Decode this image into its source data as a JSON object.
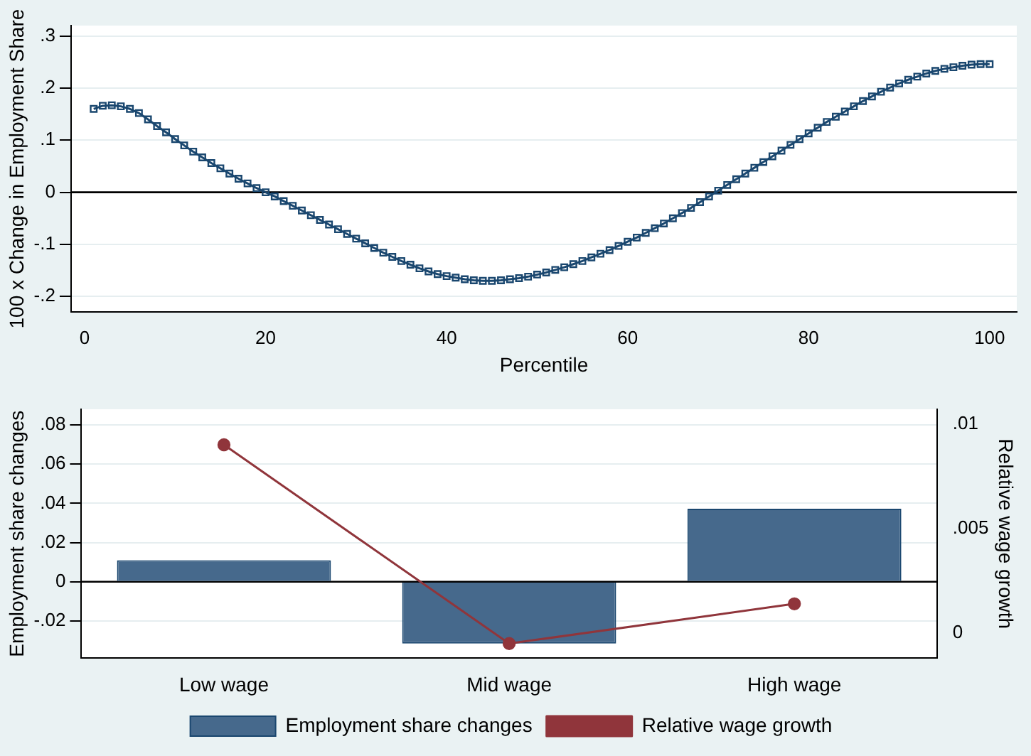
{
  "chart_data": [
    {
      "type": "line",
      "xlabel": "Percentile",
      "ylabel": "100 x Change in Employment Share",
      "x": [
        1,
        2,
        3,
        4,
        5,
        6,
        7,
        8,
        9,
        10,
        11,
        12,
        13,
        14,
        15,
        16,
        17,
        18,
        19,
        20,
        21,
        22,
        23,
        24,
        25,
        26,
        27,
        28,
        29,
        30,
        31,
        32,
        33,
        34,
        35,
        36,
        37,
        38,
        39,
        40,
        41,
        42,
        43,
        44,
        45,
        46,
        47,
        48,
        49,
        50,
        51,
        52,
        53,
        54,
        55,
        56,
        57,
        58,
        59,
        60,
        61,
        62,
        63,
        64,
        65,
        66,
        67,
        68,
        69,
        70,
        71,
        72,
        73,
        74,
        75,
        76,
        77,
        78,
        79,
        80,
        81,
        82,
        83,
        84,
        85,
        86,
        87,
        88,
        89,
        90,
        91,
        92,
        93,
        94,
        95,
        96,
        97,
        98,
        99,
        100
      ],
      "series": [
        {
          "color": "#1a476f",
          "values": [
            0.16,
            0.166,
            0.167,
            0.165,
            0.16,
            0.152,
            0.14,
            0.127,
            0.115,
            0.102,
            0.09,
            0.078,
            0.067,
            0.056,
            0.046,
            0.036,
            0.026,
            0.017,
            0.008,
            0.0,
            -0.008,
            -0.017,
            -0.026,
            -0.035,
            -0.044,
            -0.053,
            -0.062,
            -0.071,
            -0.08,
            -0.089,
            -0.098,
            -0.107,
            -0.116,
            -0.124,
            -0.132,
            -0.139,
            -0.146,
            -0.152,
            -0.157,
            -0.161,
            -0.164,
            -0.167,
            -0.169,
            -0.17,
            -0.17,
            -0.169,
            -0.167,
            -0.165,
            -0.162,
            -0.158,
            -0.154,
            -0.149,
            -0.144,
            -0.138,
            -0.132,
            -0.125,
            -0.118,
            -0.111,
            -0.103,
            -0.095,
            -0.087,
            -0.078,
            -0.069,
            -0.06,
            -0.05,
            -0.04,
            -0.03,
            -0.019,
            -0.008,
            0.003,
            0.014,
            0.025,
            0.036,
            0.047,
            0.058,
            0.069,
            0.08,
            0.091,
            0.102,
            0.113,
            0.124,
            0.135,
            0.145,
            0.155,
            0.165,
            0.175,
            0.184,
            0.193,
            0.201,
            0.209,
            0.216,
            0.222,
            0.228,
            0.233,
            0.237,
            0.24,
            0.243,
            0.245,
            0.246,
            0.246
          ]
        }
      ],
      "marker": "square",
      "xlim": [
        -1.5,
        103
      ],
      "xticks": [
        0,
        20,
        40,
        60,
        80,
        100
      ],
      "ylim": [
        -0.23,
        0.32
      ],
      "yticks": [
        {
          "value": -0.2,
          "label": "-.2"
        },
        {
          "value": -0.1,
          "label": "-.1"
        },
        0,
        {
          "value": 0.1,
          "label": ".1"
        },
        {
          "value": 0.2,
          "label": ".2"
        },
        {
          "value": 0.3,
          "label": ".3"
        }
      ],
      "grid": "y",
      "ref_lines": [
        {
          "axis": "y",
          "value": 0,
          "color": "#000000"
        }
      ],
      "legend": false
    },
    {
      "type": "bar",
      "categories": [
        "Low wage",
        "Mid wage",
        "High wage"
      ],
      "ylabel": "Employment share changes",
      "y2label": "Relative wage growth",
      "series": [
        {
          "name": "Employment share changes",
          "color": "#46698c",
          "values": [
            0.011,
            -0.0315,
            0.0373
          ]
        },
        {
          "name": "Relative wage growth",
          "type": "line",
          "axis": "y2",
          "color": "#90353b",
          "values": [
            0.009,
            -0.0005,
            0.0014
          ]
        }
      ],
      "ylim": [
        -0.039,
        0.088
      ],
      "yticks": [
        {
          "value": -0.02,
          "label": "-.02"
        },
        0,
        {
          "value": 0.02,
          "label": ".02"
        },
        {
          "value": 0.04,
          "label": ".04"
        },
        {
          "value": 0.06,
          "label": ".06"
        },
        {
          "value": 0.08,
          "label": ".08"
        }
      ],
      "y2lim": [
        -0.0012,
        0.0107
      ],
      "y2ticks": [
        0,
        {
          "value": 0.005,
          "label": ".005"
        },
        {
          "value": 0.01,
          "label": ".01"
        }
      ],
      "grid": "y",
      "marker": "circle",
      "ref_lines": [
        {
          "axis": "y",
          "value": 0,
          "color": "#000000"
        }
      ],
      "legend": "bottom"
    }
  ]
}
